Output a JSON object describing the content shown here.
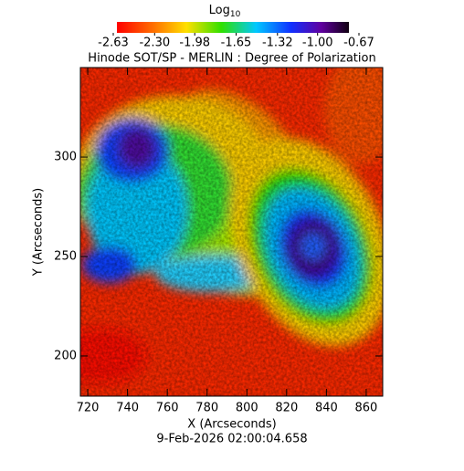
{
  "chart_data": {
    "type": "image",
    "title": "Hinode SOT/SP - MERLIN : Degree of Polarization",
    "colorbar_label": "Log",
    "colorbar_label_subscript": "10",
    "colorbar_ticks": [
      {
        "value": -2.63,
        "label": "-2.63"
      },
      {
        "value": -2.3,
        "label": "-2.30"
      },
      {
        "value": -1.98,
        "label": "-1.98"
      },
      {
        "value": -1.65,
        "label": "-1.65"
      },
      {
        "value": -1.32,
        "label": "-1.32"
      },
      {
        "value": -1.0,
        "label": "-1.00"
      },
      {
        "value": -0.67,
        "label": "-0.67"
      }
    ],
    "x_label": "X (Arcseconds)",
    "y_label": "Y (Arcseconds)",
    "footer": "9-Feb-2026 02:00:04.658",
    "xlim": [
      716.3,
      868.3
    ],
    "ylim": [
      179.8,
      345
    ],
    "xticks": [
      720,
      740,
      760,
      780,
      800,
      820,
      840,
      860
    ],
    "yticks": [
      200,
      250,
      300
    ]
  }
}
